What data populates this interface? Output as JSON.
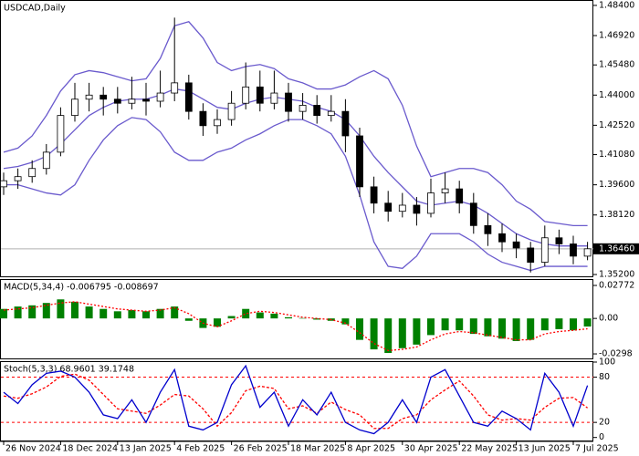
{
  "chart_data": [
    {
      "type": "candlestick",
      "title": "USDCAD,Daily",
      "categories": [
        "26 Nov 2024",
        null,
        null,
        null,
        "18 Dec 2024",
        null,
        null,
        null,
        "13 Jan 2025",
        null,
        null,
        null,
        "4 Feb 2025",
        null,
        null,
        null,
        "26 Feb 2025",
        null,
        null,
        null,
        "18 Mar 2025",
        null,
        null,
        null,
        "8 Apr 2025",
        null,
        null,
        null,
        "30 Apr 2025",
        null,
        null,
        null,
        "22 May 2025",
        null,
        null,
        null,
        "13 Jun 2025",
        null,
        null,
        null,
        "7 Jul 2025",
        null
      ],
      "open": [
        1.395,
        1.398,
        1.4,
        1.404,
        1.412,
        1.43,
        1.438,
        1.44,
        1.438,
        1.436,
        1.438,
        1.437,
        1.441,
        1.446,
        1.432,
        1.425,
        1.428,
        1.436,
        1.444,
        1.436,
        1.441,
        1.432,
        1.435,
        1.43,
        1.432,
        1.42,
        1.395,
        1.387,
        1.383,
        1.386,
        1.382,
        1.392,
        1.394,
        1.387,
        1.376,
        1.372,
        1.368,
        1.365,
        1.358,
        1.37,
        1.367,
        1.361
      ],
      "high": [
        1.402,
        1.404,
        1.408,
        1.416,
        1.434,
        1.446,
        1.446,
        1.444,
        1.444,
        1.449,
        1.446,
        1.452,
        1.478,
        1.45,
        1.436,
        1.433,
        1.442,
        1.456,
        1.452,
        1.452,
        1.446,
        1.441,
        1.44,
        1.44,
        1.438,
        1.424,
        1.4,
        1.393,
        1.392,
        1.39,
        1.399,
        1.402,
        1.398,
        1.392,
        1.382,
        1.377,
        1.372,
        1.368,
        1.376,
        1.374,
        1.371,
        1.368
      ],
      "low": [
        1.391,
        1.394,
        1.397,
        1.401,
        1.41,
        1.427,
        1.432,
        1.43,
        1.431,
        1.433,
        1.43,
        1.434,
        1.437,
        1.428,
        1.42,
        1.421,
        1.425,
        1.433,
        1.432,
        1.433,
        1.427,
        1.428,
        1.426,
        1.427,
        1.412,
        1.39,
        1.382,
        1.378,
        1.38,
        1.376,
        1.38,
        1.387,
        1.382,
        1.372,
        1.366,
        1.363,
        1.36,
        1.353,
        1.356,
        1.362,
        1.357,
        1.359
      ],
      "close": [
        1.398,
        1.4,
        1.404,
        1.412,
        1.43,
        1.438,
        1.44,
        1.438,
        1.436,
        1.438,
        1.437,
        1.441,
        1.446,
        1.432,
        1.425,
        1.428,
        1.436,
        1.444,
        1.436,
        1.441,
        1.432,
        1.435,
        1.43,
        1.432,
        1.42,
        1.395,
        1.387,
        1.383,
        1.386,
        1.382,
        1.392,
        1.394,
        1.387,
        1.376,
        1.372,
        1.368,
        1.365,
        1.358,
        1.37,
        1.367,
        1.361,
        1.3646
      ],
      "up_color": "#ffffff",
      "down_color": "#000000",
      "bands": {
        "color": "#6a5acd",
        "upper": [
          1.412,
          1.414,
          1.42,
          1.43,
          1.442,
          1.45,
          1.452,
          1.451,
          1.449,
          1.447,
          1.448,
          1.458,
          1.474,
          1.476,
          1.468,
          1.456,
          1.452,
          1.454,
          1.455,
          1.453,
          1.448,
          1.446,
          1.443,
          1.443,
          1.445,
          1.449,
          1.452,
          1.448,
          1.435,
          1.415,
          1.4,
          1.402,
          1.404,
          1.404,
          1.402,
          1.396,
          1.388,
          1.384,
          1.378,
          1.377,
          1.376,
          1.376
        ],
        "middle": [
          1.404,
          1.405,
          1.407,
          1.41,
          1.416,
          1.423,
          1.43,
          1.434,
          1.437,
          1.438,
          1.438,
          1.44,
          1.443,
          1.442,
          1.438,
          1.434,
          1.433,
          1.436,
          1.438,
          1.439,
          1.438,
          1.437,
          1.434,
          1.432,
          1.428,
          1.42,
          1.41,
          1.402,
          1.395,
          1.388,
          1.386,
          1.387,
          1.388,
          1.386,
          1.382,
          1.377,
          1.372,
          1.369,
          1.367,
          1.366,
          1.366,
          1.366
        ],
        "lower": [
          1.396,
          1.396,
          1.394,
          1.392,
          1.391,
          1.396,
          1.408,
          1.418,
          1.425,
          1.429,
          1.428,
          1.422,
          1.412,
          1.408,
          1.408,
          1.412,
          1.414,
          1.418,
          1.421,
          1.425,
          1.428,
          1.428,
          1.425,
          1.421,
          1.41,
          1.391,
          1.368,
          1.356,
          1.355,
          1.361,
          1.372,
          1.372,
          1.372,
          1.368,
          1.362,
          1.358,
          1.356,
          1.354,
          1.356,
          1.356,
          1.356,
          1.356
        ]
      },
      "ylim": [
        1.3511,
        1.4862
      ],
      "yticks": [
        {
          "value": 1.484,
          "label": "1.48400"
        },
        {
          "value": 1.4692,
          "label": "1.46920"
        },
        {
          "value": 1.4548,
          "label": "1.45480"
        },
        {
          "value": 1.44,
          "label": "1.44000"
        },
        {
          "value": 1.4252,
          "label": "1.42520"
        },
        {
          "value": 1.4108,
          "label": "1.41080"
        },
        {
          "value": 1.396,
          "label": "1.39600"
        },
        {
          "value": 1.3812,
          "label": "1.38120"
        },
        {
          "value": 1.352,
          "label": "1.35200"
        }
      ],
      "last_price": {
        "value": 1.3646,
        "label": "1.36460"
      }
    },
    {
      "type": "macd",
      "title": "MACD(5,34,4) -0.006795 -0.008697",
      "color": "#008000",
      "values": [
        0.008,
        0.01,
        0.011,
        0.013,
        0.016,
        0.014,
        0.01,
        0.008,
        0.006,
        0.007,
        0.006,
        0.008,
        0.01,
        -0.002,
        -0.008,
        -0.007,
        0.002,
        0.008,
        0.005,
        0.004,
        0.001,
        0.0003,
        -0.001,
        -0.002,
        -0.005,
        -0.018,
        -0.026,
        -0.029,
        -0.025,
        -0.022,
        -0.014,
        -0.01,
        -0.01,
        -0.013,
        -0.015,
        -0.017,
        -0.019,
        -0.018,
        -0.01,
        -0.009,
        -0.01,
        -0.006795
      ],
      "signal": {
        "color": "#ff0000",
        "values": [
          0.007,
          0.008,
          0.009,
          0.011,
          0.013,
          0.014,
          0.012,
          0.01,
          0.008,
          0.007,
          0.006,
          0.007,
          0.009,
          0.004,
          -0.004,
          -0.007,
          -0.002,
          0.004,
          0.006,
          0.005,
          0.003,
          0.001,
          0.0,
          -0.001,
          -0.004,
          -0.012,
          -0.021,
          -0.027,
          -0.026,
          -0.024,
          -0.018,
          -0.013,
          -0.011,
          -0.012,
          -0.014,
          -0.016,
          -0.018,
          -0.018,
          -0.013,
          -0.011,
          -0.01,
          -0.008697
        ]
      },
      "ylim": [
        -0.0336,
        0.0323
      ],
      "yticks": [
        0.02772,
        {
          "value": 0,
          "label": "0.00"
        },
        -0.0298
      ]
    },
    {
      "type": "stochastic",
      "title": "Stoch(5,3,3) 68.9601 39.1748",
      "main": {
        "color": "#0000cd",
        "values": [
          60,
          45,
          70,
          85,
          88,
          80,
          60,
          30,
          25,
          50,
          20,
          60,
          90,
          15,
          10,
          20,
          70,
          95,
          40,
          60,
          15,
          50,
          30,
          60,
          20,
          10,
          5,
          20,
          50,
          20,
          80,
          90,
          55,
          20,
          15,
          35,
          25,
          10,
          85,
          60,
          15,
          68.9601
        ]
      },
      "signal": {
        "color": "#ff0000",
        "values": [
          55,
          52,
          58,
          67,
          81,
          84,
          76,
          57,
          38,
          35,
          32,
          43,
          57,
          55,
          38,
          15,
          33,
          62,
          68,
          65,
          38,
          42,
          32,
          47,
          37,
          30,
          12,
          12,
          25,
          30,
          50,
          63,
          75,
          55,
          30,
          23,
          25,
          23,
          40,
          52,
          53,
          39.1748
        ]
      },
      "levels": [
        80,
        20
      ],
      "ylim": [
        -4,
        100
      ],
      "yticks": [
        100,
        80,
        20,
        0
      ]
    }
  ]
}
